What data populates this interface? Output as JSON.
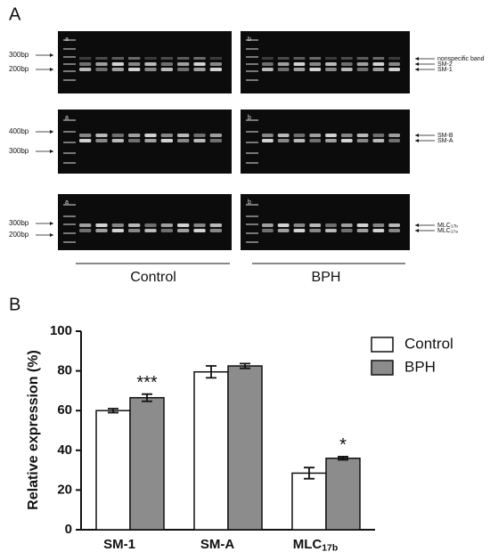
{
  "panel_a": {
    "label": "A",
    "rows": [
      {
        "left_labels": [
          "300bp",
          "200bp"
        ],
        "right_labels": [
          "nonspecific band",
          "SM-2",
          "SM-1"
        ],
        "lane_marks": [
          "a",
          "b"
        ]
      },
      {
        "left_labels": [
          "400bp",
          "300bp"
        ],
        "right_labels": [
          "SM-B",
          "SM-A"
        ],
        "lane_marks": [
          "a",
          "b"
        ]
      },
      {
        "left_labels": [
          "300bp",
          "200bp"
        ],
        "right_labels": [
          "MLC17b",
          "MLC17a"
        ],
        "lane_marks": [
          "a",
          "b"
        ]
      }
    ],
    "groups": [
      "Control",
      "BPH"
    ]
  },
  "chart_data": {
    "type": "bar",
    "panel_label": "B",
    "y_label": "Relative expression (%)",
    "categories": [
      "SM-1",
      "SM-A",
      "MLC17b"
    ],
    "series": [
      {
        "name": "Control",
        "color": "#ffffff",
        "values": [
          60,
          79.5,
          28.5
        ],
        "errors": [
          1,
          3,
          2.8
        ]
      },
      {
        "name": "BPH",
        "color": "#8c8c8c",
        "values": [
          66.5,
          82.5,
          36
        ],
        "errors": [
          1.8,
          1.2,
          0.8
        ]
      }
    ],
    "significance": [
      "***",
      null,
      "*"
    ],
    "ylim": [
      0,
      100
    ],
    "yticks": [
      0,
      20,
      40,
      60,
      80,
      100
    ],
    "legend": "top-right"
  }
}
